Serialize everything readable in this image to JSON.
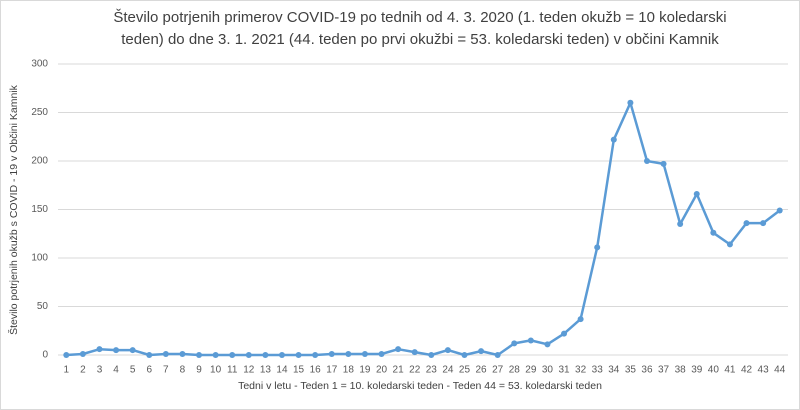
{
  "chart_data": {
    "type": "line",
    "title": [
      "Število potrjenih primerov COVID-19 po tednih od 4. 3. 2020 (1. teden okužb = 10 koledarski",
      "teden) do dne 3. 1. 2021 (44. teden po prvi okužbi = 53. koledarski teden) v občini Kamnik"
    ],
    "x_label": "Tedni v letu - Teden 1 = 10. koledarski teden - Teden 44 =  53. koledarski teden",
    "y_label": "Število potrjenih okužb s COVID - 19 v Občini Kamnik",
    "categories": [
      1,
      2,
      3,
      4,
      5,
      6,
      7,
      8,
      9,
      10,
      11,
      12,
      13,
      14,
      15,
      16,
      17,
      18,
      19,
      20,
      21,
      22,
      23,
      24,
      25,
      26,
      27,
      28,
      29,
      30,
      31,
      32,
      33,
      34,
      35,
      36,
      37,
      38,
      39,
      40,
      41,
      42,
      43,
      44
    ],
    "values": [
      0,
      1,
      6,
      5,
      5,
      0,
      1,
      1,
      0,
      0,
      0,
      0,
      0,
      0,
      0,
      0,
      1,
      1,
      1,
      1,
      6,
      3,
      0,
      5,
      0,
      4,
      0,
      12,
      15,
      11,
      22,
      37,
      111,
      222,
      260,
      200,
      197,
      135,
      166,
      126,
      114,
      136,
      136,
      149
    ],
    "color": "#5b9bd5",
    "ylim": [
      0,
      300
    ],
    "yticks": [
      0,
      50,
      100,
      150,
      200,
      250,
      300
    ],
    "grid": true
  }
}
